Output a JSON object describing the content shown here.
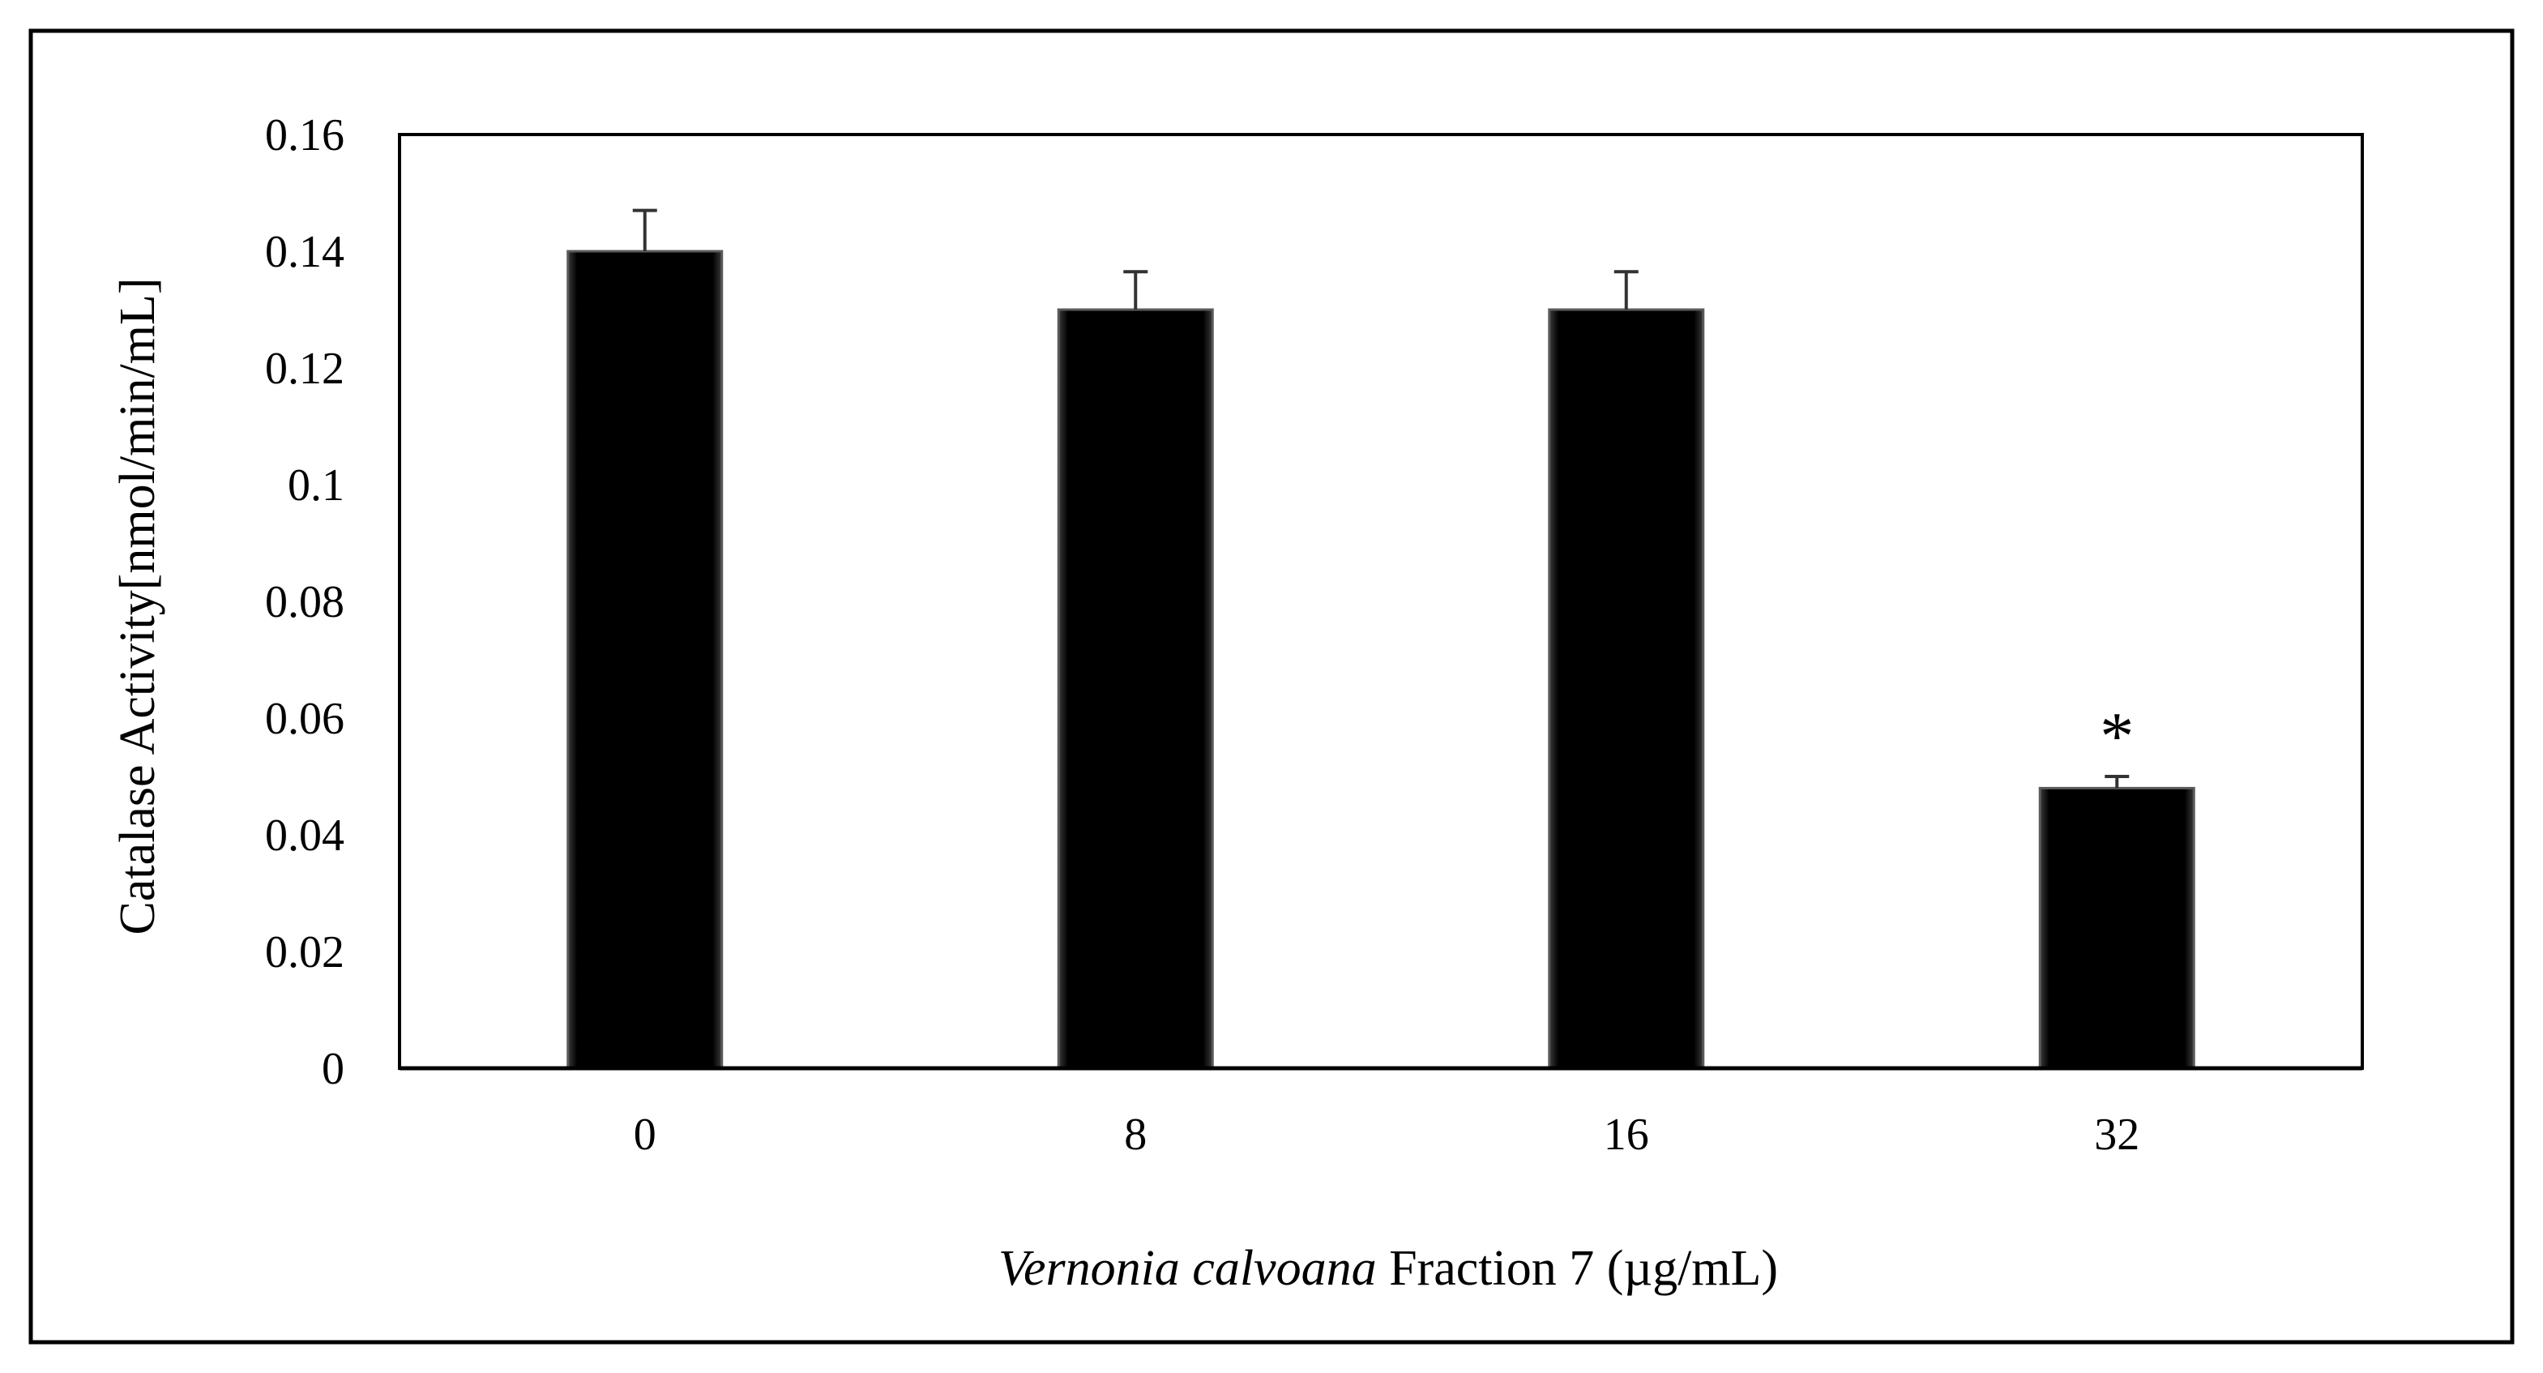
{
  "chart_data": {
    "type": "bar",
    "categories": [
      "0",
      "8",
      "16",
      "32"
    ],
    "values": [
      0.14,
      0.13,
      0.13,
      0.048
    ],
    "error_bars": [
      0.007,
      0.0065,
      0.0065,
      0.002
    ],
    "significance": [
      "",
      "",
      "",
      "*"
    ],
    "ylim": [
      0,
      0.16
    ],
    "yticks": [
      0,
      0.02,
      0.04,
      0.06,
      0.08,
      0.1,
      0.12,
      0.14,
      0.16
    ],
    "ytick_labels": [
      "0",
      "0.02",
      "0.04",
      "0.06",
      "0.08",
      "0.1",
      "0.12",
      "0.14",
      "0.16"
    ],
    "ylabel": "Catalase Activity[nmol/min/mL]",
    "xlabel_italic": "Vernonia calvoana",
    "xlabel_rest": " Fraction 7 (µg/mL)",
    "grid": false,
    "legend": false
  },
  "colors": {
    "bar": "#000000",
    "axis": "#000000",
    "background": "#ffffff"
  }
}
